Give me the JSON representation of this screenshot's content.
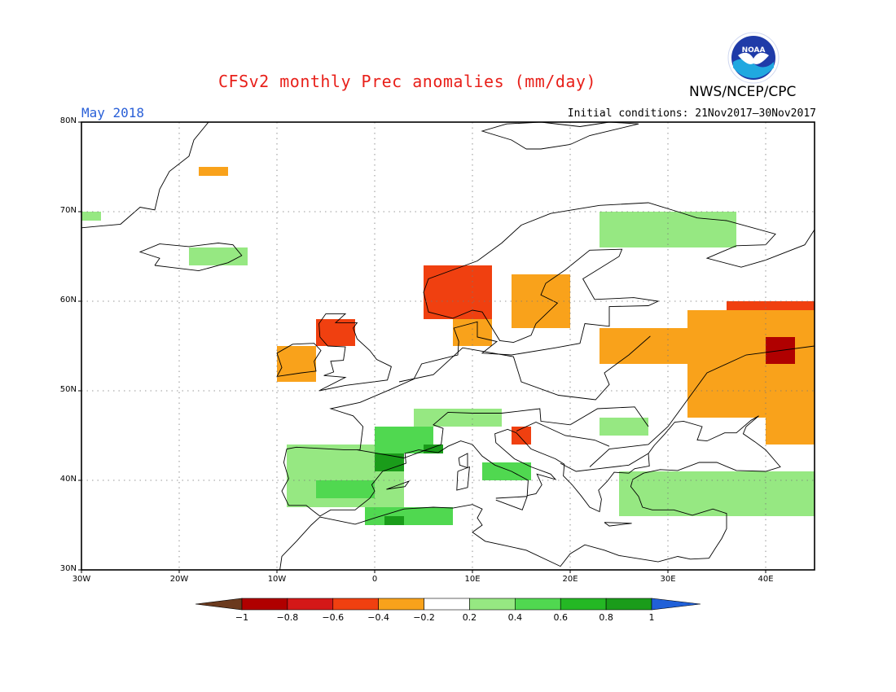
{
  "header": {
    "title": "CFSv2 monthly Prec anomalies (mm/day)",
    "organization": "NWS/NCEP/CPC",
    "logo_text": "NOAA",
    "period": "May 2018",
    "initial_conditions": "Initial conditions: 21Nov2017–30Nov2017"
  },
  "map": {
    "lon_range": [
      -30,
      45
    ],
    "lat_range": [
      30,
      80
    ],
    "lat_ticks": [
      {
        "lat": 80,
        "label": "80N"
      },
      {
        "lat": 70,
        "label": "70N"
      },
      {
        "lat": 60,
        "label": "60N"
      },
      {
        "lat": 50,
        "label": "50N"
      },
      {
        "lat": 40,
        "label": "40N"
      },
      {
        "lat": 30,
        "label": "30N"
      }
    ],
    "lon_ticks": [
      {
        "lon": -30,
        "label": "30W"
      },
      {
        "lon": -20,
        "label": "20W"
      },
      {
        "lon": -10,
        "label": "10W"
      },
      {
        "lon": 0,
        "label": "0"
      },
      {
        "lon": 10,
        "label": "10E"
      },
      {
        "lon": 20,
        "label": "20E"
      },
      {
        "lon": 30,
        "label": "30E"
      },
      {
        "lon": 40,
        "label": "40E"
      }
    ],
    "grid": "dotted",
    "anomaly_regions": [
      {
        "lon": [
          36,
          45
        ],
        "lat": [
          52,
          60
        ],
        "level": -0.5
      },
      {
        "lon": [
          32,
          45
        ],
        "lat": [
          47,
          59
        ],
        "level": -0.3
      },
      {
        "lon": [
          40,
          43
        ],
        "lat": [
          53,
          56
        ],
        "level": -0.9
      },
      {
        "lon": [
          40,
          45
        ],
        "lat": [
          44,
          50
        ],
        "level": -0.3
      },
      {
        "lon": [
          23,
          32
        ],
        "lat": [
          53,
          57
        ],
        "level": -0.3
      },
      {
        "lon": [
          14,
          20
        ],
        "lat": [
          57,
          63
        ],
        "level": -0.3
      },
      {
        "lon": [
          5,
          12
        ],
        "lat": [
          58,
          64
        ],
        "level": -0.5
      },
      {
        "lon": [
          8,
          12
        ],
        "lat": [
          55,
          58
        ],
        "level": -0.3
      },
      {
        "lon": [
          -10,
          -6
        ],
        "lat": [
          51,
          55
        ],
        "level": -0.3
      },
      {
        "lon": [
          -6,
          -2
        ],
        "lat": [
          55,
          58
        ],
        "level": -0.5
      },
      {
        "lon": [
          14,
          16
        ],
        "lat": [
          44,
          46
        ],
        "level": -0.5
      },
      {
        "lon": [
          -18,
          -15
        ],
        "lat": [
          74,
          75
        ],
        "level": -0.3
      },
      {
        "lon": [
          23,
          37
        ],
        "lat": [
          66,
          70
        ],
        "level": 0.3
      },
      {
        "lon": [
          -19,
          -13
        ],
        "lat": [
          64,
          66
        ],
        "level": 0.3
      },
      {
        "lon": [
          -30,
          -28
        ],
        "lat": [
          69,
          70
        ],
        "level": 0.3
      },
      {
        "lon": [
          -9,
          3
        ],
        "lat": [
          37,
          44
        ],
        "level": 0.4
      },
      {
        "lon": [
          -6,
          0
        ],
        "lat": [
          38,
          40
        ],
        "level": 0.6
      },
      {
        "lon": [
          0,
          6
        ],
        "lat": [
          43,
          46
        ],
        "level": 0.5
      },
      {
        "lon": [
          0,
          3
        ],
        "lat": [
          41,
          43
        ],
        "level": 0.9
      },
      {
        "lon": [
          5,
          7
        ],
        "lat": [
          43,
          44
        ],
        "level": 0.9
      },
      {
        "lon": [
          4,
          13
        ],
        "lat": [
          46,
          48
        ],
        "level": 0.4
      },
      {
        "lon": [
          -1,
          8
        ],
        "lat": [
          35,
          37
        ],
        "level": 0.6
      },
      {
        "lon": [
          1,
          3
        ],
        "lat": [
          35,
          36
        ],
        "level": 0.9
      },
      {
        "lon": [
          25,
          45
        ],
        "lat": [
          36,
          41
        ],
        "level": 0.4
      },
      {
        "lon": [
          23,
          28
        ],
        "lat": [
          45,
          47
        ],
        "level": 0.3
      },
      {
        "lon": [
          11,
          16
        ],
        "lat": [
          40,
          42
        ],
        "level": 0.5
      }
    ]
  },
  "colorbar": {
    "labels": [
      "−1",
      "−0.8",
      "−0.6",
      "−0.4",
      "−0.2",
      "0.2",
      "0.4",
      "0.6",
      "0.8",
      "1"
    ],
    "colors": [
      "#6b3a1e",
      "#b00000",
      "#d41818",
      "#f04010",
      "#f9a21b",
      "#ffffff",
      "#96e882",
      "#50d850",
      "#24b824",
      "#1a9c1a",
      "#2060d8"
    ]
  }
}
